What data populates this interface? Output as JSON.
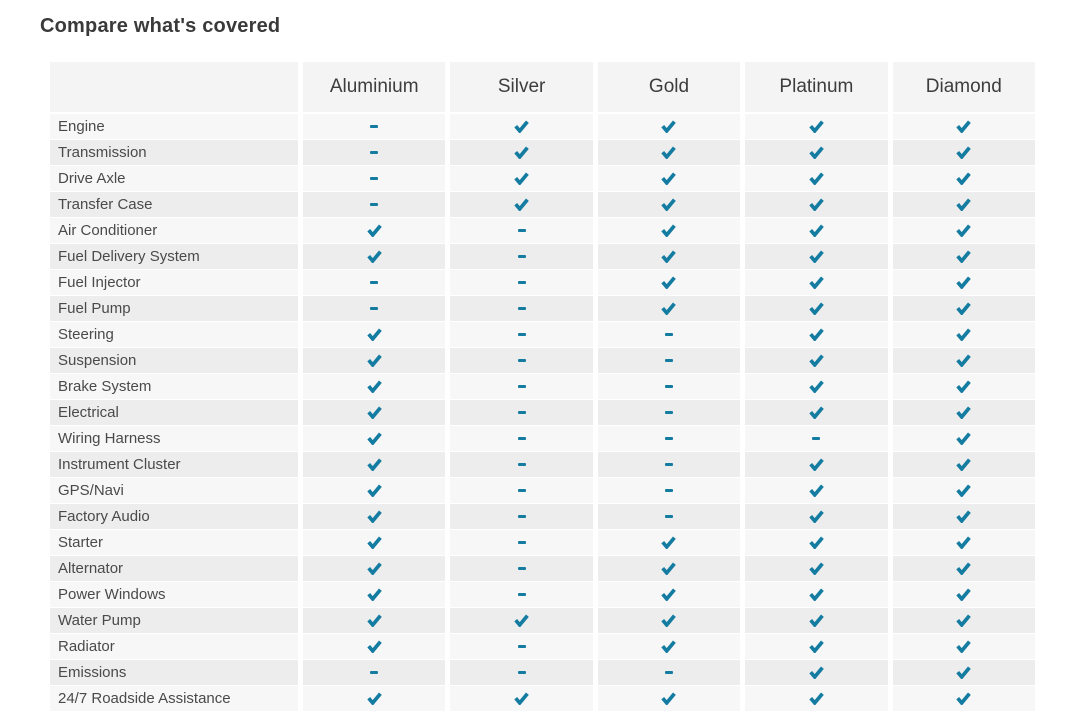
{
  "title": "Compare what's covered",
  "colors": {
    "accent": "#147CA0",
    "row_light": "#f7f7f7",
    "row_dark": "#ededed",
    "header_bg": "#f4f4f4"
  },
  "table": {
    "columns": [
      "Aluminium",
      "Silver",
      "Gold",
      "Platinum",
      "Diamond"
    ],
    "legend": {
      "covered": "check-icon",
      "not_covered": "dash-icon"
    },
    "rows": [
      {
        "label": "Engine",
        "values": [
          "dash",
          "check",
          "check",
          "check",
          "check"
        ]
      },
      {
        "label": "Transmission",
        "values": [
          "dash",
          "check",
          "check",
          "check",
          "check"
        ]
      },
      {
        "label": "Drive Axle",
        "values": [
          "dash",
          "check",
          "check",
          "check",
          "check"
        ]
      },
      {
        "label": "Transfer Case",
        "values": [
          "dash",
          "check",
          "check",
          "check",
          "check"
        ]
      },
      {
        "label": "Air Conditioner",
        "values": [
          "check",
          "dash",
          "check",
          "check",
          "check"
        ]
      },
      {
        "label": "Fuel Delivery System",
        "values": [
          "check",
          "dash",
          "check",
          "check",
          "check"
        ]
      },
      {
        "label": "Fuel Injector",
        "values": [
          "dash",
          "dash",
          "check",
          "check",
          "check"
        ]
      },
      {
        "label": "Fuel Pump",
        "values": [
          "dash",
          "dash",
          "check",
          "check",
          "check"
        ]
      },
      {
        "label": "Steering",
        "values": [
          "check",
          "dash",
          "dash",
          "check",
          "check"
        ]
      },
      {
        "label": "Suspension",
        "values": [
          "check",
          "dash",
          "dash",
          "check",
          "check"
        ]
      },
      {
        "label": "Brake System",
        "values": [
          "check",
          "dash",
          "dash",
          "check",
          "check"
        ]
      },
      {
        "label": "Electrical",
        "values": [
          "check",
          "dash",
          "dash",
          "check",
          "check"
        ]
      },
      {
        "label": "Wiring Harness",
        "values": [
          "check",
          "dash",
          "dash",
          "dash",
          "check"
        ]
      },
      {
        "label": "Instrument Cluster",
        "values": [
          "check",
          "dash",
          "dash",
          "check",
          "check"
        ]
      },
      {
        "label": "GPS/Navi",
        "values": [
          "check",
          "dash",
          "dash",
          "check",
          "check"
        ]
      },
      {
        "label": "Factory Audio",
        "values": [
          "check",
          "dash",
          "dash",
          "check",
          "check"
        ]
      },
      {
        "label": "Starter",
        "values": [
          "check",
          "dash",
          "check",
          "check",
          "check"
        ]
      },
      {
        "label": "Alternator",
        "values": [
          "check",
          "dash",
          "check",
          "check",
          "check"
        ]
      },
      {
        "label": "Power Windows",
        "values": [
          "check",
          "dash",
          "check",
          "check",
          "check"
        ]
      },
      {
        "label": "Water Pump",
        "values": [
          "check",
          "check",
          "check",
          "check",
          "check"
        ]
      },
      {
        "label": "Radiator",
        "values": [
          "check",
          "dash",
          "check",
          "check",
          "check"
        ]
      },
      {
        "label": "Emissions",
        "values": [
          "dash",
          "dash",
          "dash",
          "check",
          "check"
        ]
      },
      {
        "label": "24/7 Roadside Assistance",
        "values": [
          "check",
          "check",
          "check",
          "check",
          "check"
        ]
      }
    ]
  }
}
